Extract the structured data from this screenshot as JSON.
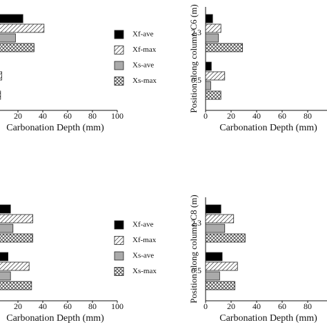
{
  "chart_data": [
    {
      "type": "bar",
      "orientation": "horizontal",
      "categories": [
        null,
        null
      ],
      "xlabel": "Carbonation Depth (mm)",
      "xlim": [
        0,
        100
      ],
      "xticks": [
        20,
        40,
        60,
        80,
        100
      ],
      "legend": "right",
      "series": [
        {
          "name": "Xf-ave",
          "color": "#000000",
          "pattern": "solid",
          "values": [
            24,
            5
          ]
        },
        {
          "name": "Xf-max",
          "color": "#ffffff",
          "pattern": "hatch",
          "values": [
            41,
            7
          ]
        },
        {
          "name": "Xs-ave",
          "color": "#aaaaaa",
          "pattern": "solid",
          "values": [
            18,
            4
          ]
        },
        {
          "name": "Xs-max",
          "color": "#ffffff",
          "pattern": "crosshatch",
          "values": [
            33,
            6
          ]
        }
      ]
    },
    {
      "type": "bar",
      "orientation": "horizontal",
      "categories": [
        "2.3",
        "0.5"
      ],
      "xlabel": "Carbonation Depth (mm)",
      "ylabel": "Position along column C6 (m)",
      "xlim": [
        0,
        100
      ],
      "xticks": [
        0,
        20,
        40,
        60,
        80,
        100
      ],
      "series": [
        {
          "color": "#000000",
          "pattern": "solid",
          "values": [
            5.5,
            4.5
          ]
        },
        {
          "color": "#ffffff",
          "pattern": "hatch",
          "values": [
            12,
            15
          ]
        },
        {
          "color": "#aaaaaa",
          "pattern": "solid",
          "values": [
            10,
            4
          ]
        },
        {
          "color": "#ffffff",
          "pattern": "crosshatch",
          "values": [
            29,
            12
          ]
        }
      ]
    },
    {
      "type": "bar",
      "orientation": "horizontal",
      "categories": [
        null,
        null
      ],
      "xlabel": "Carbonation Depth (mm)",
      "xlim": [
        0,
        100
      ],
      "xticks": [
        20,
        40,
        60,
        80,
        100
      ],
      "legend": "right",
      "series": [
        {
          "name": "Xf-ave",
          "color": "#000000",
          "pattern": "solid",
          "values": [
            14,
            12
          ]
        },
        {
          "name": "Xf-max",
          "color": "#ffffff",
          "pattern": "hatch",
          "values": [
            32,
            29
          ]
        },
        {
          "name": "Xs-ave",
          "color": "#aaaaaa",
          "pattern": "solid",
          "values": [
            16,
            14
          ]
        },
        {
          "name": "Xs-max",
          "color": "#ffffff",
          "pattern": "crosshatch",
          "values": [
            32,
            31
          ]
        }
      ]
    },
    {
      "type": "bar",
      "orientation": "horizontal",
      "categories": [
        "2.3",
        "0.5"
      ],
      "xlabel": "Carbonation Depth (mm)",
      "ylabel": "Position along column C8 (m)",
      "xlim": [
        0,
        100
      ],
      "xticks": [
        0,
        20,
        40,
        60,
        80,
        100
      ],
      "series": [
        {
          "color": "#000000",
          "pattern": "solid",
          "values": [
            12,
            13
          ]
        },
        {
          "color": "#ffffff",
          "pattern": "hatch",
          "values": [
            22,
            25
          ]
        },
        {
          "color": "#aaaaaa",
          "pattern": "solid",
          "values": [
            15,
            11
          ]
        },
        {
          "color": "#ffffff",
          "pattern": "crosshatch",
          "values": [
            31,
            23
          ]
        }
      ]
    }
  ]
}
